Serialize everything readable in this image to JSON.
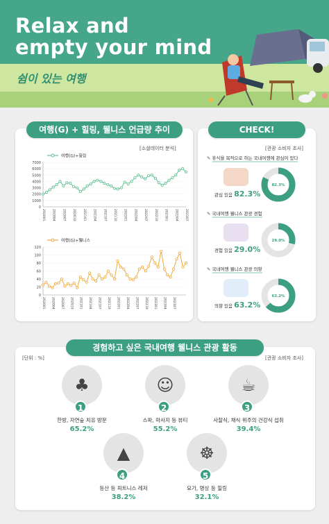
{
  "hero": {
    "title_line1": "Relax and",
    "title_line2": "empty your mind",
    "subtitle": "쉼이 있는 여행"
  },
  "trend": {
    "title": "여행(G) + 힐링, 웰니스 언급량 추이",
    "source": "[소셜데이터 분석]"
  },
  "check": {
    "title": "CHECK!",
    "source": "[관광 소비자 조사]",
    "items": [
      {
        "title": "휴식을 목적으로 하는 국내여행에 관심이 있다",
        "label": "관심 있음",
        "value": "82.3%",
        "ring_label": "82.3%",
        "fraction": 0.823
      },
      {
        "title": "국내여행 웰니스 관광 경험",
        "label": "경험 있음",
        "value": "29.0%",
        "ring_label": "29.0%",
        "fraction": 0.29
      },
      {
        "title": "국내여행 웰니스 관광 의향",
        "label": "의향 있음",
        "value": "63.2%",
        "ring_label": "63.2%",
        "fraction": 0.632
      }
    ]
  },
  "activities": {
    "title": "경험하고 싶은 국내여행 웰니스 관광 활동",
    "unit": "[단위 : %]",
    "source": "[관광 소비자 조사]",
    "items": [
      {
        "num": "1",
        "label": "한방, 자연숲 치유 방문",
        "value": "65.2%",
        "icon": "trees-icon"
      },
      {
        "num": "2",
        "label": "스파, 마사지 등 뷰티",
        "value": "55.2%",
        "icon": "spa-face-icon"
      },
      {
        "num": "3",
        "label": "사찰식, 채식 위주의 건강식 섭취",
        "value": "39.4%",
        "icon": "healthy-food-icon"
      },
      {
        "num": "4",
        "label": "등산 등 피트니스 레저",
        "value": "38.2%",
        "icon": "climbing-icon"
      },
      {
        "num": "5",
        "label": "요가, 명상 등 힐링",
        "value": "32.1%",
        "icon": "meditation-icon"
      }
    ]
  },
  "colors": {
    "accent": "#3d9f82",
    "ring_bg": "#e4e4e4",
    "line_green": "#5cbf8f",
    "line_orange": "#f2a93b"
  },
  "chart_data": [
    {
      "type": "line",
      "series": [
        {
          "name": "여행(G)+힐링",
          "values": [
            2000,
            2300,
            2700,
            3100,
            3500,
            4000,
            3300,
            3800,
            3700,
            3200,
            3000,
            2400,
            2800,
            3300,
            3600,
            4000,
            4200,
            4000,
            3700,
            3500,
            3300,
            2900,
            2800,
            3000,
            3900,
            3600,
            4000,
            4600,
            5000,
            4700,
            4400,
            4900,
            5000,
            4500,
            3800,
            3400,
            3700,
            4200,
            4600,
            5000,
            5800,
            6000,
            5500
          ]
        }
      ],
      "x": [
        "202001",
        "202002",
        "202003",
        "202004",
        "202005",
        "202006",
        "202007",
        "202008",
        "202009",
        "202010",
        "202011",
        "202012",
        "202101",
        "202102",
        "202103",
        "202104",
        "202105",
        "202106",
        "202107",
        "202108",
        "202109",
        "202110",
        "202111",
        "202112",
        "202201",
        "202202",
        "202203",
        "202204",
        "202205",
        "202206",
        "202207",
        "202208",
        "202209",
        "202210",
        "202211",
        "202212",
        "202301",
        "202302",
        "202303",
        "202304",
        "202305",
        "202306",
        "202307"
      ],
      "x_ticks": [
        "202001",
        "202004",
        "202007",
        "202010",
        "202101",
        "202104",
        "202107",
        "202110",
        "202201",
        "202204",
        "202207",
        "202210",
        "202301",
        "202304",
        "202307"
      ],
      "ylim": [
        0,
        7000
      ],
      "yticks": [
        0,
        1000,
        2000,
        3000,
        4000,
        5000,
        6000,
        7000
      ]
    },
    {
      "type": "line",
      "series": [
        {
          "name": "여행(G)+웰니스",
          "values": [
            25,
            32,
            22,
            18,
            28,
            30,
            40,
            22,
            28,
            24,
            30,
            18,
            45,
            38,
            32,
            55,
            40,
            35,
            50,
            40,
            45,
            60,
            50,
            40,
            85,
            70,
            65,
            50,
            40,
            38,
            45,
            65,
            70,
            60,
            72,
            95,
            80,
            70,
            110,
            65,
            50,
            45,
            65,
            90,
            105,
            70,
            80
          ]
        }
      ],
      "x": [
        "202001",
        "202002",
        "202003",
        "202004",
        "202005",
        "202006",
        "202007",
        "202008",
        "202009",
        "202010",
        "202011",
        "202012",
        "202101",
        "202102",
        "202103",
        "202104",
        "202105",
        "202106",
        "202107",
        "202108",
        "202109",
        "202110",
        "202111",
        "202112",
        "202201",
        "202202",
        "202203",
        "202204",
        "202205",
        "202206",
        "202207",
        "202208",
        "202209",
        "202210",
        "202211",
        "202212",
        "202301",
        "202302",
        "202303",
        "202304",
        "202305",
        "202306",
        "202307",
        "202308",
        "202309",
        "202310",
        "202311"
      ],
      "x_ticks": [
        "202001",
        "202004",
        "202007",
        "202010",
        "202101",
        "202104",
        "202107",
        "202110",
        "202201",
        "202204",
        "202207",
        "202210",
        "202301",
        "202304",
        "202307"
      ],
      "ylim": [
        0,
        120
      ],
      "yticks": [
        0,
        20,
        40,
        60,
        80,
        100,
        120
      ]
    }
  ]
}
